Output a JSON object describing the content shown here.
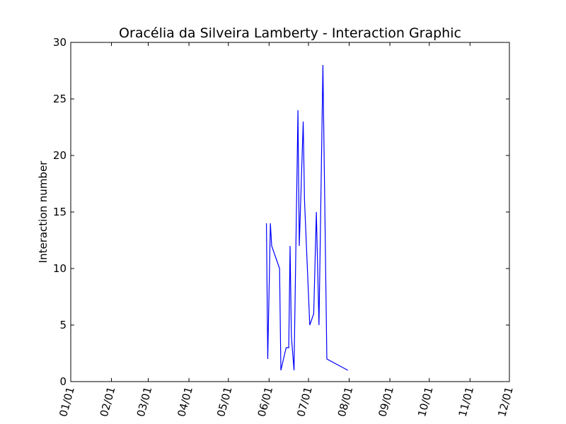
{
  "chart_data": {
    "type": "line",
    "title": "Oracélia da Silveira Lamberty - Interaction Graphic",
    "xlabel": "",
    "ylabel": "Interaction number",
    "x_tick_labels": [
      "01/01",
      "02/01",
      "03/01",
      "04/01",
      "05/01",
      "06/01",
      "07/01",
      "08/01",
      "09/01",
      "10/01",
      "11/01",
      "12/01"
    ],
    "x_ticks": [
      "01-01",
      "02-01",
      "03-01",
      "04-01",
      "05-01",
      "06-01",
      "07-01",
      "08-01",
      "09-01",
      "10-01",
      "11-01",
      "12-01"
    ],
    "xlim": [
      "01-01",
      "12-01"
    ],
    "ylim": [
      0,
      30
    ],
    "y_ticks": [
      0,
      5,
      10,
      15,
      20,
      25,
      30
    ],
    "grid": false,
    "series": [
      {
        "color": "#0000ff",
        "x": [
          "05-30",
          "05-31",
          "06-02",
          "06-03",
          "06-09",
          "06-10",
          "06-14",
          "06-16",
          "06-17",
          "06-18",
          "06-20",
          "06-23",
          "06-24",
          "06-27",
          "06-28",
          "07-02",
          "07-05",
          "07-07",
          "07-09",
          "07-12",
          "07-15",
          "07-31"
        ],
        "y": [
          14,
          2,
          14,
          12,
          10,
          1,
          3,
          3,
          12,
          4,
          1,
          24,
          12,
          23,
          16,
          5,
          6,
          15,
          5,
          28,
          2,
          1
        ]
      }
    ]
  }
}
